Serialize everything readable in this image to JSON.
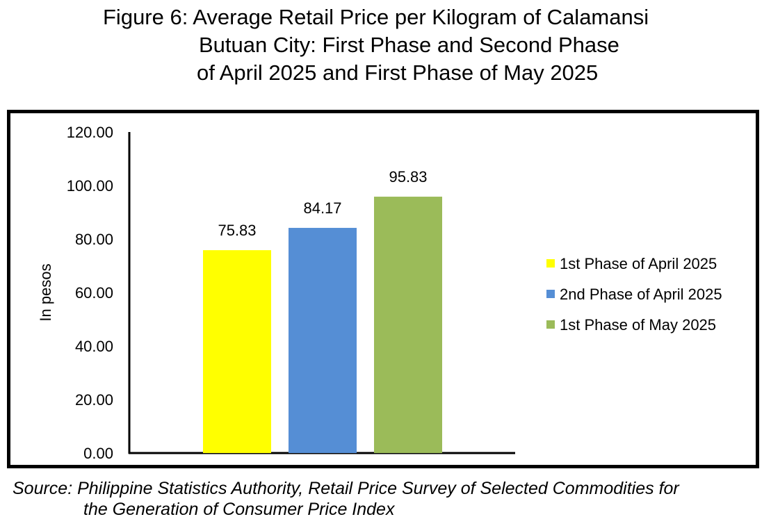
{
  "title": {
    "line1": "Figure 6: Average Retail Price per Kilogram of Calamansi",
    "line2": "Butuan City: First Phase and Second Phase",
    "line3": "of April 2025 and First Phase of May 2025"
  },
  "source": {
    "line1": "Source: Philippine Statistics Authority, Retail Price Survey of Selected Commodities for",
    "line2": "the Generation of Consumer Price Index"
  },
  "chart_data": {
    "type": "bar",
    "ylabel": "In pesos",
    "ylim": [
      0,
      120
    ],
    "yticks": [
      "0.00",
      "20.00",
      "40.00",
      "60.00",
      "80.00",
      "100.00",
      "120.00"
    ],
    "legend_position": "right",
    "grid": false,
    "series": [
      {
        "name": "1st Phase of April 2025",
        "value": 75.83,
        "label": "75.83",
        "color": "#FFFF00"
      },
      {
        "name": "2nd Phase of April 2025",
        "value": 84.17,
        "label": "84.17",
        "color": "#558ED5"
      },
      {
        "name": "1st Phase of May 2025",
        "value": 95.83,
        "label": "95.83",
        "color": "#9BBB59"
      }
    ]
  }
}
